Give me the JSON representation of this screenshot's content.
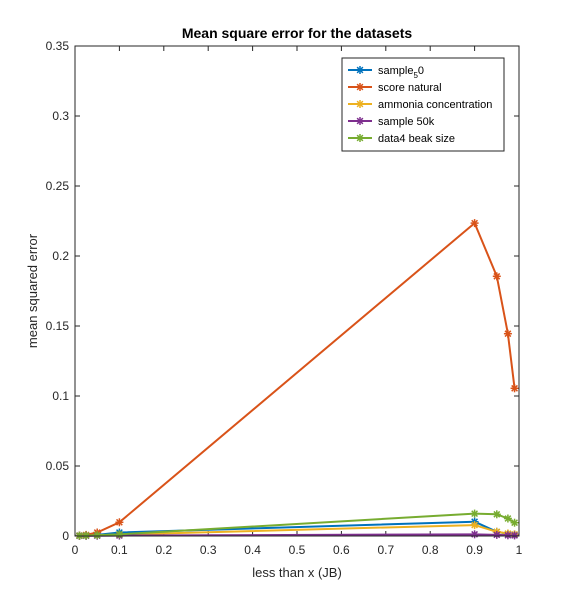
{
  "chart_data": {
    "type": "line",
    "title": "Mean square error for the datasets",
    "xlabel": "less than x (JB)",
    "ylabel": "mean squared error",
    "xlim": [
      0,
      1
    ],
    "ylim": [
      0,
      0.35
    ],
    "xticks": [
      "0",
      "0.1",
      "0.2",
      "0.3",
      "0.4",
      "0.5",
      "0.6",
      "0.7",
      "0.8",
      "0.9",
      "1"
    ],
    "yticks": [
      "0",
      "0.05",
      "0.1",
      "0.15",
      "0.2",
      "0.25",
      "0.3",
      "0.35"
    ],
    "grid": false,
    "legend_position": "top-right",
    "marker": "asterisk",
    "series": [
      {
        "name": "sample",
        "name_subscript": "5",
        "name_suffix": "0",
        "color": "#0072BD",
        "x": [
          0.01,
          0.025,
          0.05,
          0.1,
          0.9,
          0.95,
          0.975,
          0.99
        ],
        "y": [
          0.0003,
          0.0005,
          0.0008,
          0.0025,
          0.0102,
          0.003,
          0.0015,
          0.001
        ]
      },
      {
        "name": "score natural",
        "color": "#D95319",
        "x": [
          0.01,
          0.025,
          0.05,
          0.1,
          0.9,
          0.95,
          0.975,
          0.99
        ],
        "y": [
          0.0003,
          0.0008,
          0.0025,
          0.0098,
          0.2235,
          0.1855,
          0.1445,
          0.1055
        ]
      },
      {
        "name": "ammonia concentration",
        "color": "#EDB120",
        "x": [
          0.01,
          0.025,
          0.05,
          0.1,
          0.9,
          0.95,
          0.975,
          0.99
        ],
        "y": [
          0.0002,
          0.0003,
          0.0005,
          0.001,
          0.0078,
          0.003,
          0.0018,
          0.0012
        ]
      },
      {
        "name": "sample 50k",
        "color": "#7E2F8E",
        "x": [
          0.01,
          0.025,
          0.05,
          0.1,
          0.9,
          0.95,
          0.975,
          0.99
        ],
        "y": [
          0.0001,
          0.0001,
          0.0002,
          0.0003,
          0.0012,
          0.0008,
          0.0005,
          0.0004
        ]
      },
      {
        "name": "data4 beak size",
        "color": "#77AC30",
        "x": [
          0.01,
          0.025,
          0.05,
          0.1,
          0.9,
          0.95,
          0.975,
          0.99
        ],
        "y": [
          0.0002,
          0.0003,
          0.0006,
          0.0012,
          0.016,
          0.0155,
          0.0125,
          0.0095
        ]
      }
    ]
  }
}
